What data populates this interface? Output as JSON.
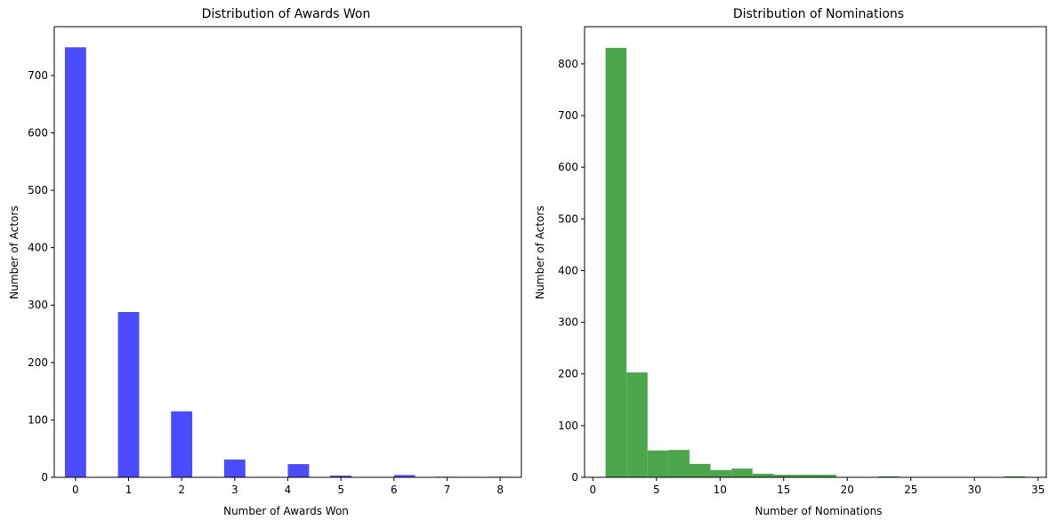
{
  "chart_data": [
    {
      "type": "bar",
      "title": "Distribution of Awards Won",
      "xlabel": "Number of Awards Won",
      "ylabel": "Number of Actors",
      "color": "#4c4cff",
      "xlim": [
        -0.4,
        8.4
      ],
      "ylim": [
        0,
        785
      ],
      "xticks": [
        0,
        1,
        2,
        3,
        4,
        5,
        6,
        7,
        8
      ],
      "yticks": [
        0,
        100,
        200,
        300,
        400,
        500,
        600,
        700
      ],
      "bar_width": 0.4,
      "bars": [
        {
          "x": 0.0,
          "value": 749
        },
        {
          "x": 1.0,
          "value": 288
        },
        {
          "x": 2.0,
          "value": 115
        },
        {
          "x": 3.0,
          "value": 31
        },
        {
          "x": 4.2,
          "value": 23
        },
        {
          "x": 5.0,
          "value": 3
        },
        {
          "x": 6.2,
          "value": 4
        },
        {
          "x": 7.0,
          "value": 1
        },
        {
          "x": 8.0,
          "value": 1
        }
      ]
    },
    {
      "type": "bar",
      "title": "Distribution of Nominations",
      "xlabel": "Number of Nominations",
      "ylabel": "Number of Actors",
      "color": "#4ca64c",
      "xlim": [
        -0.65,
        35.65
      ],
      "ylim": [
        0,
        872
      ],
      "xticks": [
        0,
        5,
        10,
        15,
        20,
        25,
        30,
        35
      ],
      "yticks": [
        0,
        100,
        200,
        300,
        400,
        500,
        600,
        700,
        800
      ],
      "bins": [
        {
          "start": 1.0,
          "end": 2.65,
          "value": 831
        },
        {
          "start": 2.65,
          "end": 4.3,
          "value": 203
        },
        {
          "start": 4.3,
          "end": 5.95,
          "value": 52
        },
        {
          "start": 5.95,
          "end": 7.6,
          "value": 53
        },
        {
          "start": 7.6,
          "end": 9.25,
          "value": 26
        },
        {
          "start": 9.25,
          "end": 10.9,
          "value": 14
        },
        {
          "start": 10.9,
          "end": 12.55,
          "value": 17
        },
        {
          "start": 12.55,
          "end": 14.2,
          "value": 7
        },
        {
          "start": 14.2,
          "end": 15.85,
          "value": 5
        },
        {
          "start": 15.85,
          "end": 17.5,
          "value": 5
        },
        {
          "start": 17.5,
          "end": 19.15,
          "value": 5
        },
        {
          "start": 19.15,
          "end": 20.8,
          "value": 0
        },
        {
          "start": 20.8,
          "end": 22.45,
          "value": 0
        },
        {
          "start": 22.45,
          "end": 24.1,
          "value": 2
        },
        {
          "start": 24.1,
          "end": 25.75,
          "value": 0
        },
        {
          "start": 25.75,
          "end": 27.4,
          "value": 0
        },
        {
          "start": 27.4,
          "end": 29.05,
          "value": 0
        },
        {
          "start": 29.05,
          "end": 30.7,
          "value": 0
        },
        {
          "start": 30.7,
          "end": 32.35,
          "value": 0
        },
        {
          "start": 32.35,
          "end": 34.0,
          "value": 2
        }
      ]
    }
  ]
}
